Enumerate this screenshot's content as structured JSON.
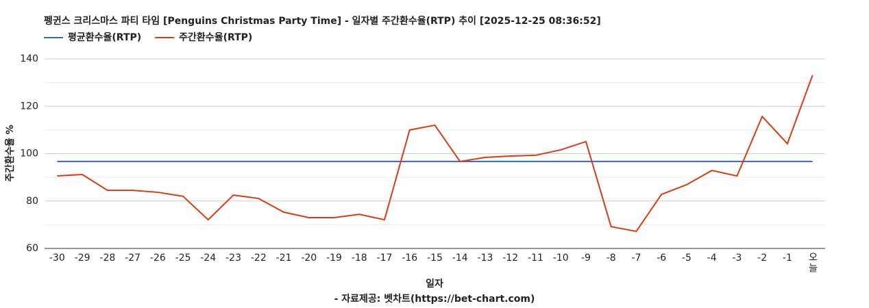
{
  "chart_data": {
    "type": "line",
    "title": "펭귄스 크리스마스 파티 타임 [Penguins Christmas Party Time] - 일자별 주간환수율(RTP) 추이 [2025-12-25 08:36:52]",
    "y_label": "주간환수율 %",
    "x_label": "일자",
    "source": "- 자료제공: 벳차트(https://bet-chart.com)",
    "legend": "top-left",
    "grid": true,
    "categories": [
      "-30",
      "-29",
      "-28",
      "-27",
      "-26",
      "-25",
      "-24",
      "-23",
      "-22",
      "-21",
      "-20",
      "-19",
      "-18",
      "-17",
      "-16",
      "-15",
      "-14",
      "-13",
      "-12",
      "-11",
      "-10",
      "-9",
      "-8",
      "-7",
      "-6",
      "-5",
      "-4",
      "-3",
      "-2",
      "-1",
      "오늘"
    ],
    "series": [
      {
        "name": "평균환수율(RTP)",
        "color": "#3366cc",
        "values": [
          96.7,
          96.7,
          96.7,
          96.7,
          96.7,
          96.7,
          96.7,
          96.7,
          96.7,
          96.7,
          96.7,
          96.7,
          96.7,
          96.7,
          96.7,
          96.7,
          96.7,
          96.7,
          96.7,
          96.7,
          96.7,
          96.7,
          96.7,
          96.7,
          96.7,
          96.7,
          96.7,
          96.7,
          96.7,
          96.7,
          96.7
        ]
      },
      {
        "name": "주간환수율(RTP)",
        "color": "#dc3912",
        "values": [
          90.6,
          91.2,
          84.5,
          84.5,
          83.7,
          82.0,
          72.1,
          82.5,
          81.1,
          75.3,
          73.0,
          73.0,
          74.4,
          72.1,
          110.0,
          112.0,
          96.7,
          98.4,
          99.0,
          99.3,
          101.6,
          105.1,
          69.2,
          67.2,
          82.8,
          86.9,
          92.9,
          90.6,
          115.7,
          104.2,
          133.1
        ]
      }
    ],
    "ylim": [
      60,
      140
    ],
    "yticks": [
      60,
      80,
      100,
      120,
      140
    ],
    "minor_yticks": [
      70,
      90,
      110,
      130
    ]
  }
}
